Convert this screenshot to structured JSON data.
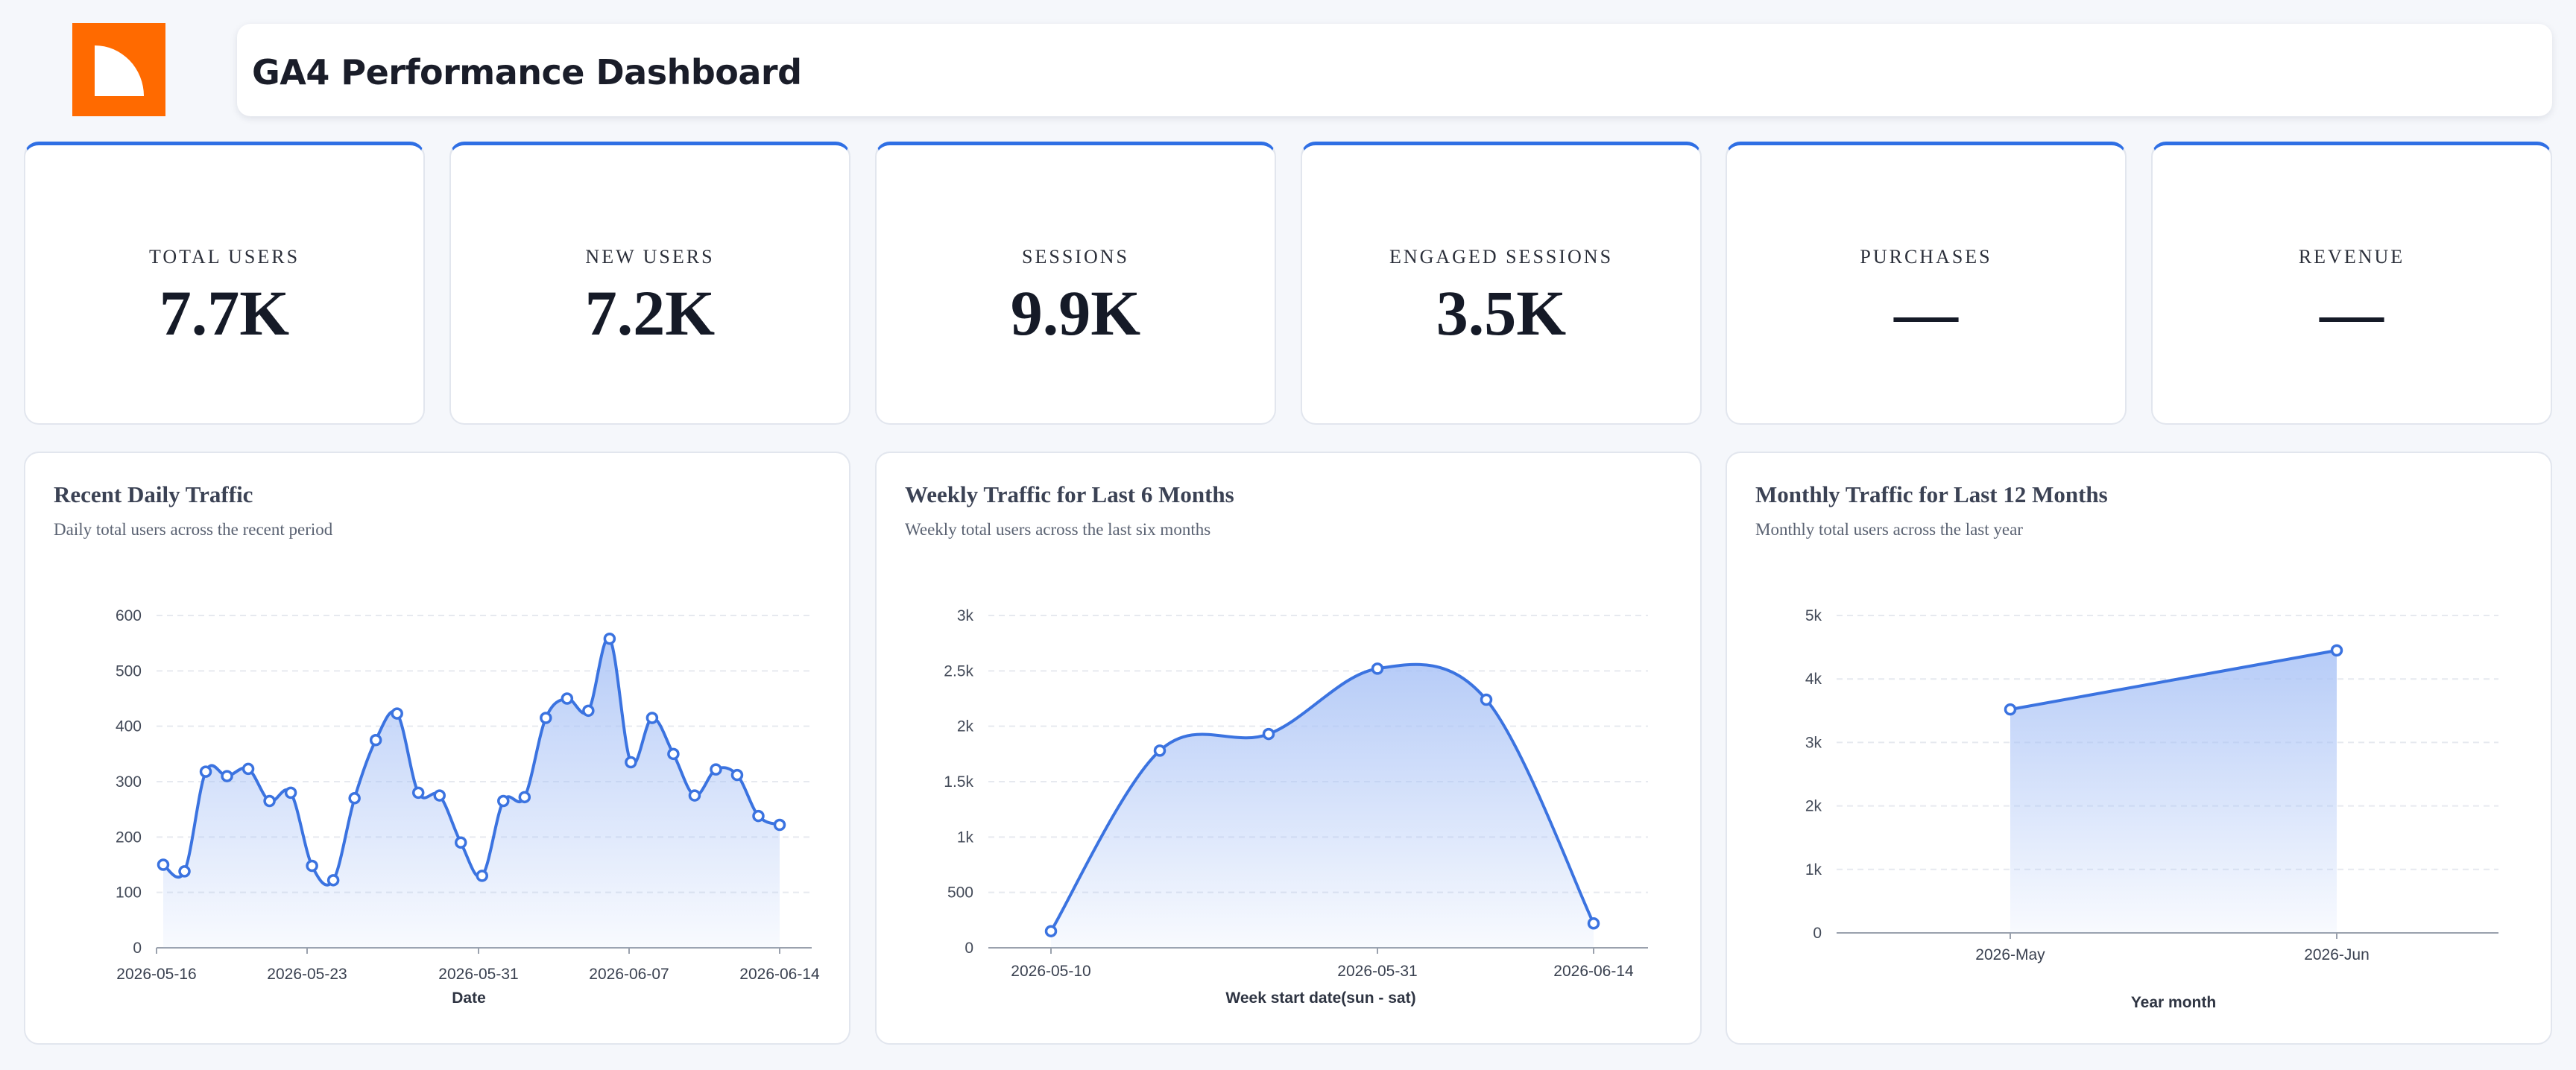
{
  "header": {
    "title": "GA4 Performance Dashboard"
  },
  "logo": {
    "icon": "quarter-circle-logo-icon",
    "color": "#ff6a00"
  },
  "colors": {
    "accent": "#2f6fe4",
    "line": "#3b73e0",
    "fill_top": "#aac3f6"
  },
  "kpis": [
    {
      "label": "TOTAL USERS",
      "value": "7.7K"
    },
    {
      "label": "NEW USERS",
      "value": "7.2K"
    },
    {
      "label": "SESSIONS",
      "value": "9.9K"
    },
    {
      "label": "ENGAGED SESSIONS",
      "value": "3.5K"
    },
    {
      "label": "PURCHASES",
      "value": "—"
    },
    {
      "label": "REVENUE",
      "value": "—"
    }
  ],
  "chart_data": [
    {
      "type": "area",
      "title": "Recent Daily Traffic",
      "subtitle": "Daily total users across the recent period",
      "xlabel": "Date",
      "ylabel": "",
      "ylim": [
        0,
        600
      ],
      "yticks": [
        0,
        100,
        200,
        300,
        400,
        500,
        600
      ],
      "xticks": [
        "2026-05-16",
        "2026-05-23",
        "2026-05-31",
        "2026-06-07",
        "2026-06-14"
      ],
      "grid": true,
      "x": [
        "2026-05-16",
        "2026-05-17",
        "2026-05-18",
        "2026-05-19",
        "2026-05-20",
        "2026-05-21",
        "2026-05-22",
        "2026-05-23",
        "2026-05-24",
        "2026-05-25",
        "2026-05-26",
        "2026-05-27",
        "2026-05-28",
        "2026-05-29",
        "2026-05-30",
        "2026-05-31",
        "2026-06-01",
        "2026-06-02",
        "2026-06-03",
        "2026-06-04",
        "2026-06-05",
        "2026-06-06",
        "2026-06-07",
        "2026-06-08",
        "2026-06-09",
        "2026-06-10",
        "2026-06-11",
        "2026-06-12",
        "2026-06-13",
        "2026-06-14"
      ],
      "values": [
        150,
        138,
        318,
        310,
        323,
        265,
        280,
        148,
        122,
        270,
        375,
        423,
        280,
        275,
        190,
        130,
        265,
        272,
        415,
        450,
        428,
        558,
        335,
        415,
        350,
        275,
        322,
        312,
        238,
        222
      ]
    },
    {
      "type": "area",
      "title": "Weekly Traffic for Last 6 Months",
      "subtitle": "Weekly total users across the last six months",
      "xlabel": "Week start date(sun - sat)",
      "ylabel": "",
      "ylim": [
        0,
        3000
      ],
      "yticks": [
        "0",
        "500",
        "1k",
        "1.5k",
        "2k",
        "2.5k",
        "3k"
      ],
      "xticks": [
        "2026-05-10",
        "2026-05-31",
        "2026-06-14"
      ],
      "grid": true,
      "x": [
        "2026-05-10",
        "2026-05-17",
        "2026-05-24",
        "2026-05-31",
        "2026-06-07",
        "2026-06-14"
      ],
      "values": [
        150,
        1780,
        1930,
        2520,
        2240,
        220
      ]
    },
    {
      "type": "area",
      "title": "Monthly Traffic for Last 12 Months",
      "subtitle": "Monthly total users across the last year",
      "xlabel": "Year month",
      "ylabel": "",
      "ylim": [
        0,
        5000
      ],
      "yticks": [
        "0",
        "1k",
        "2k",
        "3k",
        "4k",
        "5k"
      ],
      "xticks": [
        "2026-May",
        "2026-Jun"
      ],
      "grid": true,
      "x": [
        "2026-May",
        "2026-Jun"
      ],
      "values": [
        3520,
        4450
      ]
    }
  ]
}
